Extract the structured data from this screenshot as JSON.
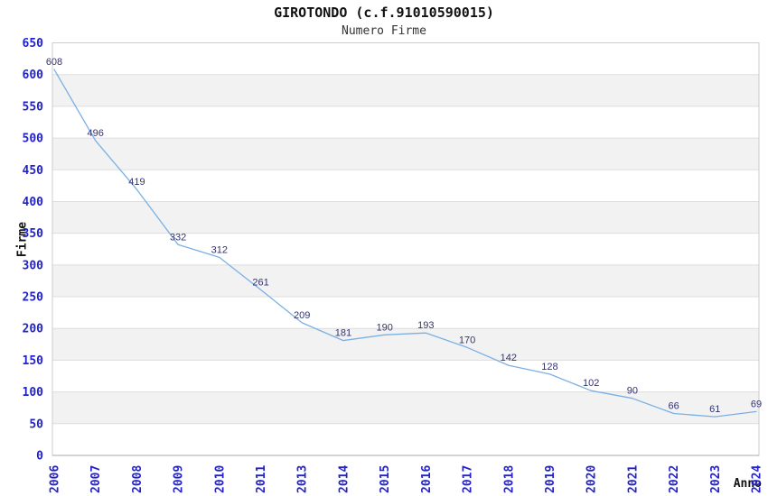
{
  "chart_data": {
    "type": "line",
    "title": "GIROTONDO (c.f.91010590015)",
    "subtitle": "Numero Firme",
    "xlabel": "Anno",
    "ylabel": "Firme",
    "categories": [
      "2006",
      "2007",
      "2008",
      "2009",
      "2010",
      "2011",
      "2013",
      "2014",
      "2015",
      "2016",
      "2017",
      "2018",
      "2019",
      "2020",
      "2021",
      "2022",
      "2023",
      "2024"
    ],
    "values": [
      608,
      496,
      419,
      332,
      312,
      261,
      209,
      181,
      190,
      193,
      170,
      142,
      128,
      102,
      90,
      66,
      61,
      69
    ],
    "ylim": [
      0,
      650
    ],
    "y_tick_step": 50,
    "grid": true,
    "alternating_bands": true,
    "legend": "none",
    "colors": {
      "line": "#7ab0e4",
      "tick_label": "#2222cc",
      "data_label": "#333370",
      "band": "#f2f2f2",
      "gridline": "#dddddd",
      "border": "#cccccc",
      "axis_line": "#aaaaaa"
    }
  }
}
